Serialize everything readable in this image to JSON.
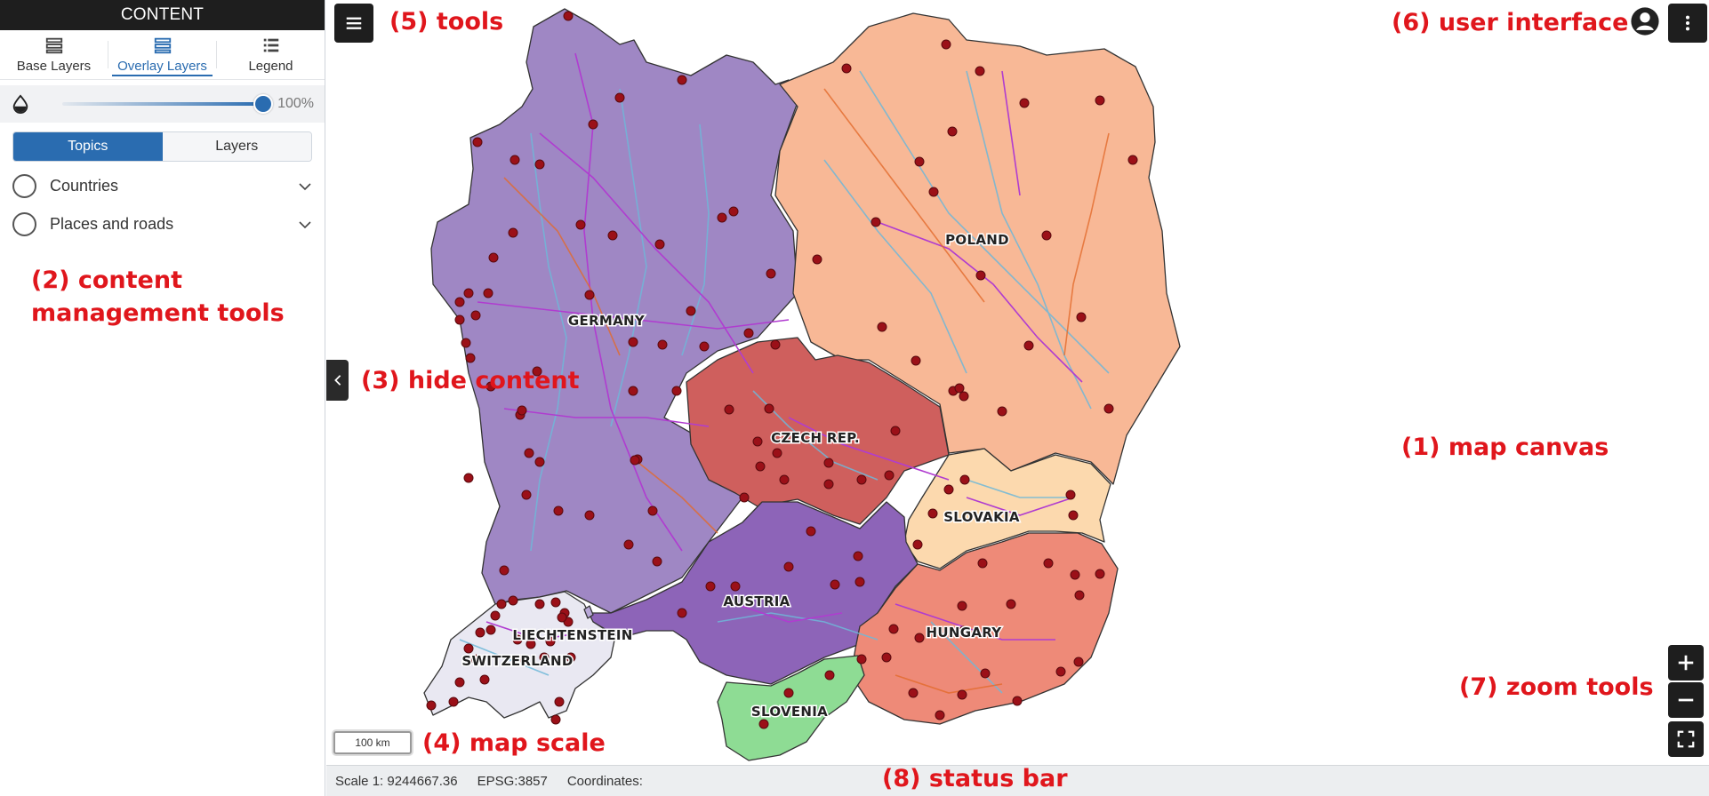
{
  "sidebar": {
    "header": "CONTENT",
    "tabs": [
      {
        "label": "Base Layers",
        "icon": "layers-icon"
      },
      {
        "label": "Overlay Layers",
        "icon": "layers-icon",
        "active": true
      },
      {
        "label": "Legend",
        "icon": "list-icon"
      }
    ],
    "opacity": {
      "icon": "drop-icon",
      "value_label": "100%",
      "value": 1.0
    },
    "segmented": [
      {
        "label": "Topics",
        "active": true
      },
      {
        "label": "Layers"
      }
    ],
    "topics": [
      {
        "label": "Countries"
      },
      {
        "label": "Places and roads"
      }
    ]
  },
  "map": {
    "countries": [
      {
        "label": "GERMANY"
      },
      {
        "label": "POLAND"
      },
      {
        "label": "CZECH REP."
      },
      {
        "label": "SLOVAKIA"
      },
      {
        "label": "AUSTRIA"
      },
      {
        "label": "HUNGARY"
      },
      {
        "label": "LIECHTENSTEIN"
      },
      {
        "label": "SWITZERLAND"
      },
      {
        "label": "SLOVENIA"
      }
    ],
    "scale_label": "100 km"
  },
  "annotations": {
    "content_tools": "(2) content\nmanagement tools",
    "tools": "(5) tools",
    "user_interface": "(6) user interface",
    "hide_content": "(3) hide content",
    "map_canvas": "(1) map canvas",
    "zoom_tools": "(7) zoom tools",
    "map_scale": "(4) map scale",
    "status_bar": "(8) status bar"
  },
  "statusbar": {
    "scale": "Scale 1: 9244667.36",
    "epsg": "EPSG:3857",
    "coordinates": "Coordinates:"
  },
  "colors": {
    "accent": "#2a6cb0",
    "germany": "#9f87c4",
    "poland": "#f8b896",
    "czech": "#cf5f5d",
    "slovakia": "#fcd9ae",
    "austria": "#8d64b8",
    "hungary": "#ee8a78",
    "switzerland": "#e9e8f2",
    "slovenia": "#8edc94",
    "annotation": "#e0161c"
  }
}
